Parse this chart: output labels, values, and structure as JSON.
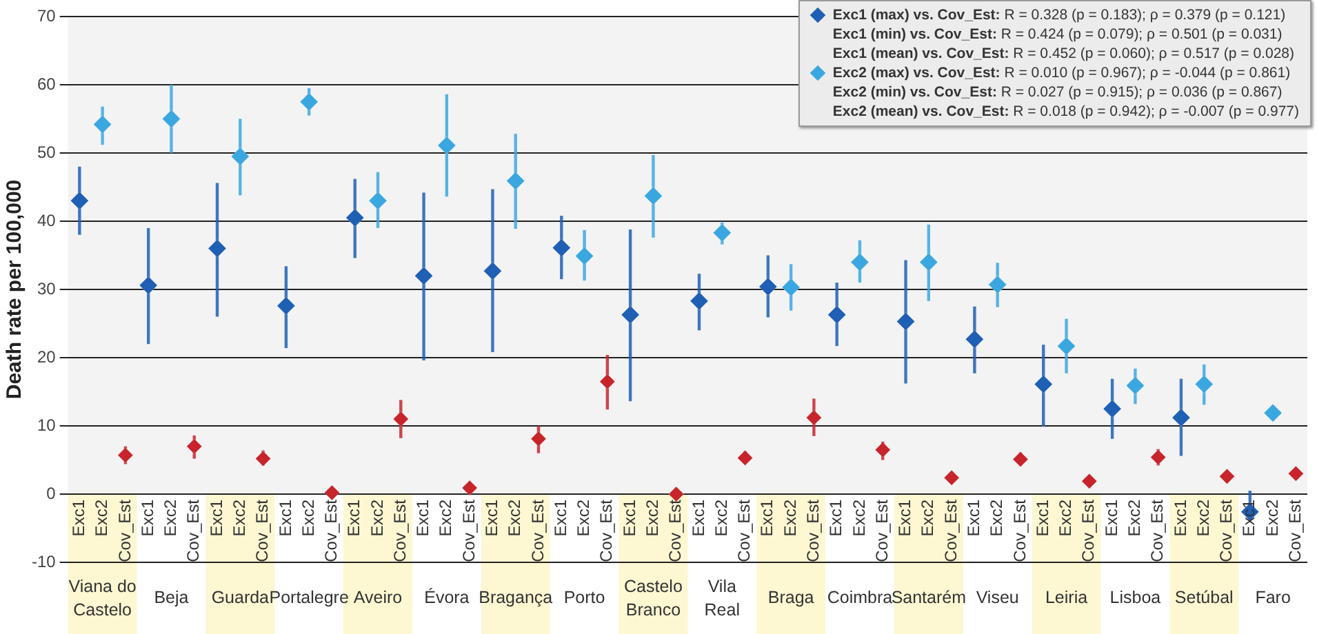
{
  "chart_data": {
    "type": "scatter",
    "ylabel": "Death rate per 100,000",
    "ylim": [
      -10,
      70
    ],
    "yticks": [
      -10,
      0,
      10,
      20,
      30,
      40,
      50,
      60,
      70
    ],
    "grid": "y",
    "bands": [
      {
        "axis": "y",
        "from": 0,
        "to": 70,
        "color": "#f3f3f3"
      }
    ],
    "legend": "top right",
    "marker": "diamond",
    "categories": [
      "Exc1",
      "Exc2",
      "Cov_Est",
      "Exc1",
      "Exc2",
      "Cov_Est",
      "Exc1",
      "Exc2",
      "Cov_Est",
      "Exc1",
      "Exc2",
      "Cov_Est",
      "Exc1",
      "Exc2",
      "Cov_Est",
      "Exc1",
      "Exc2",
      "Cov_Est",
      "Exc1",
      "Exc2",
      "Cov_Est",
      "Exc1",
      "Exc2",
      "Cov_Est",
      "Exc1",
      "Exc2",
      "Cov_Est",
      "Exc1",
      "Exc2",
      "Cov_Est",
      "Exc1",
      "Exc2",
      "Cov_Est",
      "Exc1",
      "Exc2",
      "Cov_Est",
      "Exc1",
      "Exc2",
      "Cov_Est",
      "Exc1",
      "Exc2",
      "Cov_Est",
      "Exc1",
      "Exc2",
      "Cov_Est",
      "Exc1",
      "Exc2",
      "Cov_Est",
      "Exc1",
      "Exc2",
      "Cov_Est",
      "Exc1",
      "Exc2",
      "Cov_Est"
    ],
    "annotations": [
      "Viana do Castelo",
      "Beja",
      "Guarda",
      "Portalegre",
      "Aveiro",
      "Évora",
      "Bragança",
      "Porto",
      "Castelo Branco",
      "Vila Real",
      "Braga",
      "Coimbra",
      "Santarém",
      "Viseu",
      "Leiria",
      "Lisboa",
      "Setúbal",
      "Faro"
    ],
    "series": [
      {
        "name": "Exc1 (max) vs. Cov_Est: R = 0.328 (p = 0.183); ρ = 0.379 (p = 0.121)\nExc1 (min) vs. Cov_Est: R = 0.424 (p = 0.079); ρ = 0.501 (p = 0.031)\nExc1 (mean) vs. Cov_Est: R = 0.452 (p = 0.060); ρ = 0.517 (p = 0.028)",
        "color": "#1f5fb4",
        "values": [
          43,
          null,
          null,
          30.6,
          null,
          null,
          36,
          null,
          null,
          27.6,
          null,
          null,
          40.5,
          null,
          null,
          32,
          null,
          null,
          32.7,
          null,
          null,
          36.1,
          null,
          null,
          26.3,
          null,
          null,
          28.3,
          null,
          null,
          30.4,
          null,
          null,
          26.3,
          null,
          null,
          25.3,
          null,
          null,
          22.7,
          null,
          null,
          16.1,
          null,
          null,
          12.5,
          null,
          null,
          11.2,
          null,
          null,
          -2.6,
          null,
          null
        ],
        "errors": [
          [
            38,
            48
          ],
          null,
          null,
          [
            22,
            39
          ],
          null,
          null,
          [
            26,
            45.6
          ],
          null,
          null,
          [
            21.4,
            33.4
          ],
          null,
          null,
          [
            34.6,
            46.2
          ],
          null,
          null,
          [
            19.6,
            44.2
          ],
          null,
          null,
          [
            20.8,
            44.7
          ],
          null,
          null,
          [
            31.5,
            40.8
          ],
          null,
          null,
          [
            13.6,
            38.8
          ],
          null,
          null,
          [
            24,
            32.3
          ],
          null,
          null,
          [
            25.9,
            35
          ],
          null,
          null,
          [
            21.7,
            31
          ],
          null,
          null,
          [
            16.2,
            34.3
          ],
          null,
          null,
          [
            17.7,
            27.5
          ],
          null,
          null,
          [
            9.9,
            21.9
          ],
          null,
          null,
          [
            8.1,
            16.9
          ],
          null,
          null,
          [
            5.6,
            16.9
          ],
          null,
          null,
          [
            -4,
            0.5
          ],
          null,
          null
        ]
      },
      {
        "name": "Exc2 (max) vs. Cov_Est: R = 0.010 (p = 0.967); ρ = -0.044 (p = 0.861)\nExc2 (min) vs. Cov_Est: R = 0.027 (p = 0.915); ρ = 0.036 (p = 0.867)\nExc2 (mean) vs. Cov_Est: R = 0.018 (p = 0.942); ρ = -0.007 (p = 0.977)",
        "color": "#3ba7e0",
        "values": [
          null,
          54.2,
          null,
          null,
          55,
          null,
          null,
          49.5,
          null,
          null,
          57.5,
          null,
          null,
          43,
          null,
          null,
          51.1,
          null,
          null,
          45.9,
          null,
          null,
          34.9,
          null,
          null,
          43.7,
          null,
          null,
          38.3,
          null,
          null,
          30.3,
          null,
          null,
          34,
          null,
          null,
          34,
          null,
          null,
          30.7,
          null,
          null,
          21.7,
          null,
          null,
          15.9,
          null,
          null,
          16.1,
          null,
          null,
          11.9,
          null
        ],
        "errors": [
          null,
          [
            51.2,
            56.8
          ],
          null,
          null,
          [
            50,
            60
          ],
          null,
          null,
          [
            43.8,
            55
          ],
          null,
          null,
          [
            55.5,
            59.5
          ],
          null,
          null,
          [
            39,
            47.2
          ],
          null,
          null,
          [
            43.6,
            58.6
          ],
          null,
          null,
          [
            38.9,
            52.8
          ],
          null,
          null,
          [
            31.3,
            38.7
          ],
          null,
          null,
          [
            37.6,
            49.7
          ],
          null,
          null,
          [
            36.6,
            39.8
          ],
          null,
          null,
          [
            26.9,
            33.7
          ],
          null,
          null,
          [
            31,
            37.2
          ],
          null,
          null,
          [
            28.3,
            39.5
          ],
          null,
          null,
          [
            27.4,
            33.9
          ],
          null,
          null,
          [
            17.7,
            25.7
          ],
          null,
          null,
          [
            13.2,
            18.4
          ],
          null,
          null,
          [
            13.1,
            19
          ],
          null,
          null,
          null,
          null
        ]
      },
      {
        "color": "#c8242b",
        "values": [
          null,
          null,
          5.7,
          null,
          null,
          7,
          null,
          null,
          5.2,
          null,
          null,
          0.2,
          null,
          null,
          11,
          null,
          null,
          0.9,
          null,
          null,
          8.1,
          null,
          null,
          16.5,
          null,
          null,
          0,
          null,
          null,
          5.3,
          null,
          null,
          11.2,
          null,
          null,
          6.5,
          null,
          null,
          2.4,
          null,
          null,
          5.1,
          null,
          null,
          1.9,
          null,
          null,
          5.4,
          null,
          null,
          2.6,
          null,
          null,
          3
        ],
        "errors": [
          null,
          null,
          [
            4.4,
            7
          ],
          null,
          null,
          [
            5.2,
            8.6
          ],
          null,
          null,
          [
            4.2,
            6.4
          ],
          null,
          null,
          null,
          null,
          null,
          [
            8.2,
            13.8
          ],
          null,
          null,
          null,
          null,
          null,
          [
            6,
            10
          ],
          null,
          null,
          [
            12.4,
            20.4
          ],
          null,
          null,
          null,
          null,
          null,
          [
            4.5,
            6.3
          ],
          null,
          null,
          [
            8.5,
            14
          ],
          null,
          null,
          [
            5,
            7.7
          ],
          null,
          null,
          null,
          null,
          null,
          [
            4.2,
            6.1
          ],
          null,
          null,
          null,
          null,
          null,
          [
            4.2,
            6.6
          ],
          null,
          null,
          null,
          null,
          null,
          null
        ]
      }
    ]
  }
}
